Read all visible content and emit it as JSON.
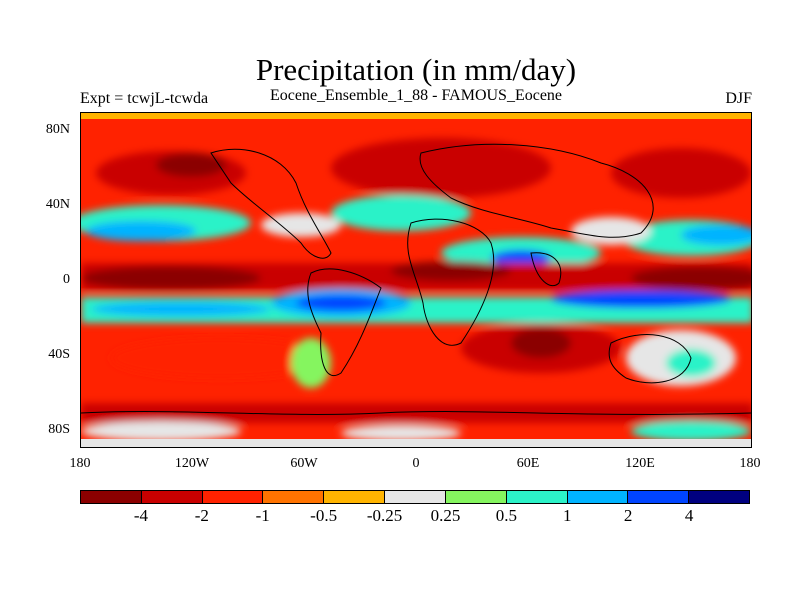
{
  "header": {
    "title": "Precipitation (in mm/day)",
    "experiment": "Expt = tcwjL-tcwda",
    "ensemble": "Eocene_Ensemble_1_88 - FAMOUS_Eocene",
    "season": "DJF"
  },
  "axes": {
    "lat_ticks": [
      "80N",
      "40N",
      "0",
      "40S",
      "80S"
    ],
    "lon_ticks": [
      "180",
      "120W",
      "60W",
      "0",
      "60E",
      "120E",
      "180"
    ]
  },
  "colorbar": {
    "colors": [
      "#8b0000",
      "#c90000",
      "#ff2200",
      "#ff7300",
      "#ffb400",
      "#e6e6e6",
      "#85f55f",
      "#2cf2c8",
      "#00b3ff",
      "#0044ff",
      "#000080"
    ],
    "labels": [
      "-4",
      "-2",
      "-1",
      "-0.5",
      "-0.25",
      "0.25",
      "0.5",
      "1",
      "2",
      "4"
    ]
  }
}
